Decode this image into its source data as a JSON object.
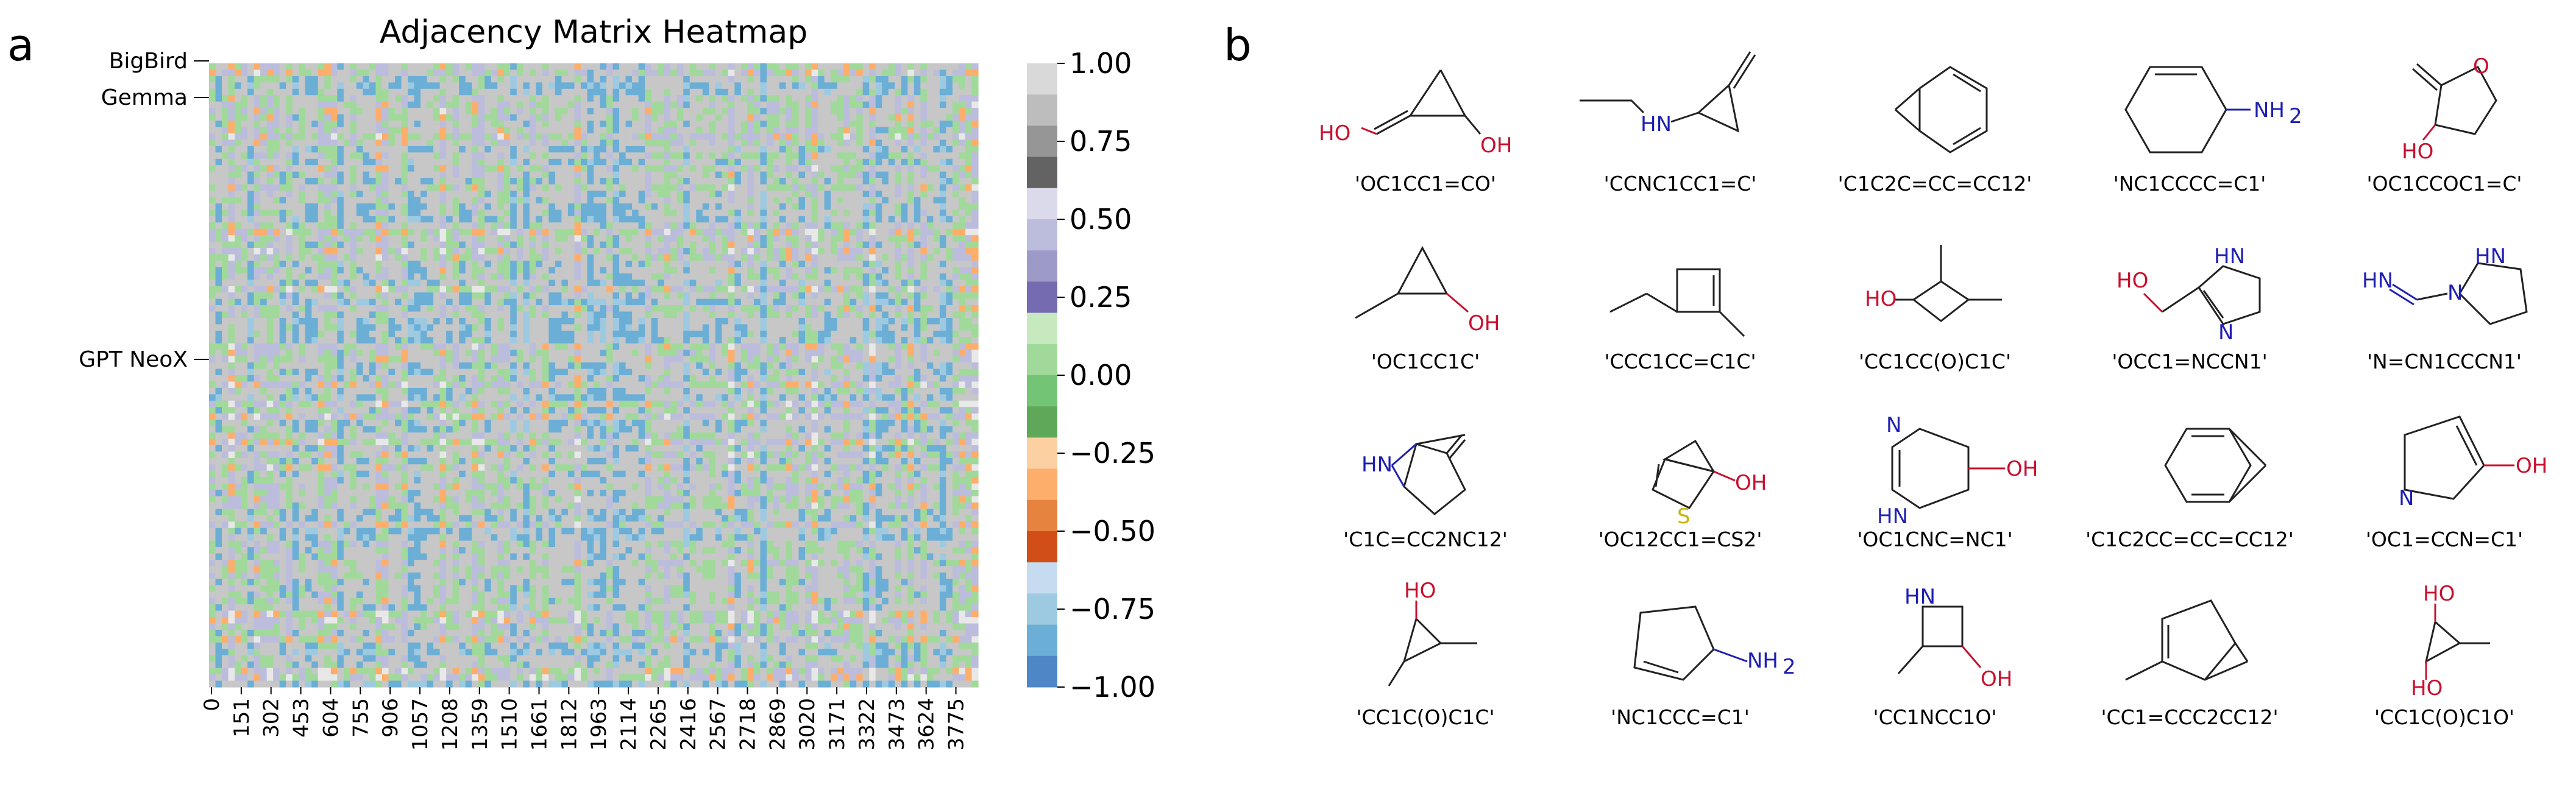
{
  "panel_a_letter": "a",
  "panel_b_letter": "b",
  "chart_data": {
    "type": "heatmap",
    "title": "Adjacency Matrix Heatmap",
    "xlabel": "",
    "ylabel": "",
    "x_tick_labels": [
      "0",
      "151",
      "302",
      "453",
      "604",
      "755",
      "906",
      "1057",
      "1208",
      "1359",
      "1510",
      "1661",
      "1812",
      "1963",
      "2114",
      "2265",
      "2416",
      "2567",
      "2718",
      "2869",
      "3020",
      "3171",
      "3322",
      "3473",
      "3624",
      "3775"
    ],
    "row_labels": [
      "BigBird",
      "Gemma",
      "GPT NeoX"
    ],
    "matrix_size": 3900,
    "value_range": [
      -1.0,
      1.0
    ],
    "colorbar": {
      "ticks": [
        "1.00",
        "0.75",
        "0.50",
        "0.25",
        "0.00",
        "−0.25",
        "−0.50",
        "−0.75",
        "−1.00"
      ],
      "tick_values": [
        1.0,
        0.75,
        0.5,
        0.25,
        0.0,
        -0.25,
        -0.5,
        -0.75,
        -1.0
      ],
      "colors_top_to_bottom": [
        "#d9d9d9",
        "#bdbdbd",
        "#969696",
        "#636363",
        "#dadaeb",
        "#bcbddc",
        "#9e9ac8",
        "#756bb1",
        "#c7e9c0",
        "#a1d99b",
        "#74c476",
        "#5fa85a",
        "#fdd0a2",
        "#fdae6b",
        "#e6843f",
        "#d14f17",
        "#c6dbef",
        "#9ecae1",
        "#6baed6",
        "#4f86c6"
      ]
    },
    "dominant_colors": [
      "#9ecae1",
      "#6baed6",
      "#c7c7c7",
      "#a1d99b",
      "#bcbddc",
      "#fdae6b",
      "#e8e8e8"
    ]
  },
  "molecules": [
    {
      "smiles": "'OC1CC1=CO'"
    },
    {
      "smiles": "'CCNC1CC1=C'"
    },
    {
      "smiles": "'C1C2C=CC=CC12'"
    },
    {
      "smiles": "'NC1CCCC=C1'"
    },
    {
      "smiles": "'OC1CCOC1=C'"
    },
    {
      "smiles": "'OC1CC1C'"
    },
    {
      "smiles": "'CCC1CC=C1C'"
    },
    {
      "smiles": "'CC1CC(O)C1C'"
    },
    {
      "smiles": "'OCC1=NCCN1'"
    },
    {
      "smiles": "'N=CN1CCCN1'"
    },
    {
      "smiles": "'C1C=CC2NC12'"
    },
    {
      "smiles": "'OC12CC1=CS2'"
    },
    {
      "smiles": "'OC1CNC=NC1'"
    },
    {
      "smiles": "'C1C2CC=CC=CC12'"
    },
    {
      "smiles": "'OC1=CCN=C1'"
    },
    {
      "smiles": "'CC1C(O)C1C'"
    },
    {
      "smiles": "'NC1CCC=C1'"
    },
    {
      "smiles": "'CC1NCC1O'"
    },
    {
      "smiles": "'CC1=CCC2CC12'"
    },
    {
      "smiles": "'CC1C(O)C1O'"
    }
  ],
  "atom_labels": {
    "oh": "OH",
    "ho": "HO",
    "o": "O",
    "hn": "HN",
    "n": "N",
    "hin": "HN",
    "s": "S",
    "nh2": "NH",
    "sub2": "2"
  }
}
